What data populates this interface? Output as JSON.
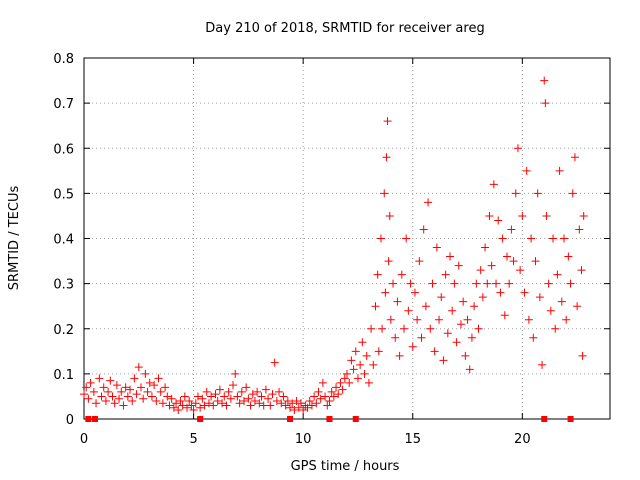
{
  "chart_data": {
    "type": "scatter",
    "title": "Day 210 of 2018, SRMTID for receiver areg",
    "xlabel": "GPS time / hours",
    "ylabel": "SRMTID / TECUs",
    "xlim": [
      0,
      24
    ],
    "ylim": [
      0,
      0.8
    ],
    "xticks": [
      0,
      5,
      10,
      15,
      20
    ],
    "xtick_labels": [
      "0",
      "5",
      "10",
      "15",
      "20"
    ],
    "yticks": [
      0,
      0.1,
      0.2,
      0.3,
      0.4,
      0.5,
      0.6,
      0.7,
      0.8
    ],
    "ytick_labels": [
      "0",
      "0.1",
      "0.2",
      "0.3",
      "0.4",
      "0.5",
      "0.6",
      "0.7",
      "0.8"
    ],
    "grid": true,
    "marker": "plus",
    "color": "#ff0000",
    "series": [
      {
        "name": "SRMTID",
        "points": [
          [
            0.0,
            0.055
          ],
          [
            0.1,
            0.07
          ],
          [
            0.2,
            0.045
          ],
          [
            0.3,
            0.08
          ],
          [
            0.45,
            0.06
          ],
          [
            0.55,
            0.035
          ],
          [
            0.7,
            0.09
          ],
          [
            0.8,
            0.05
          ],
          [
            0.9,
            0.07
          ],
          [
            1.0,
            0.04
          ],
          [
            1.1,
            0.06
          ],
          [
            1.2,
            0.085
          ],
          [
            1.3,
            0.05
          ],
          [
            1.4,
            0.035
          ],
          [
            1.5,
            0.075
          ],
          [
            1.6,
            0.045
          ],
          [
            1.7,
            0.06
          ],
          [
            1.8,
            0.03
          ],
          [
            1.9,
            0.07
          ],
          [
            2.0,
            0.05
          ],
          [
            2.1,
            0.065
          ],
          [
            2.2,
            0.04
          ],
          [
            2.3,
            0.09
          ],
          [
            2.4,
            0.055
          ],
          [
            2.5,
            0.115
          ],
          [
            2.6,
            0.07
          ],
          [
            2.7,
            0.045
          ],
          [
            2.8,
            0.1
          ],
          [
            2.9,
            0.06
          ],
          [
            3.0,
            0.08
          ],
          [
            3.1,
            0.05
          ],
          [
            3.2,
            0.075
          ],
          [
            3.3,
            0.04
          ],
          [
            3.4,
            0.09
          ],
          [
            3.5,
            0.06
          ],
          [
            3.6,
            0.035
          ],
          [
            3.7,
            0.07
          ],
          [
            3.8,
            0.05
          ],
          [
            3.9,
            0.03
          ],
          [
            4.0,
            0.045
          ],
          [
            4.1,
            0.025
          ],
          [
            4.2,
            0.035
          ],
          [
            4.3,
            0.02
          ],
          [
            4.4,
            0.04
          ],
          [
            4.5,
            0.03
          ],
          [
            4.6,
            0.05
          ],
          [
            4.7,
            0.025
          ],
          [
            4.8,
            0.04
          ],
          [
            4.9,
            0.03
          ],
          [
            5.0,
            0.02
          ],
          [
            5.1,
            0.035
          ],
          [
            5.2,
            0.05
          ],
          [
            5.3,
            0.025
          ],
          [
            5.4,
            0.045
          ],
          [
            5.5,
            0.03
          ],
          [
            5.6,
            0.06
          ],
          [
            5.7,
            0.035
          ],
          [
            5.8,
            0.05
          ],
          [
            5.9,
            0.03
          ],
          [
            6.0,
            0.055
          ],
          [
            6.1,
            0.04
          ],
          [
            6.2,
            0.065
          ],
          [
            6.3,
            0.035
          ],
          [
            6.4,
            0.05
          ],
          [
            6.5,
            0.03
          ],
          [
            6.6,
            0.06
          ],
          [
            6.7,
            0.045
          ],
          [
            6.8,
            0.075
          ],
          [
            6.9,
            0.1
          ],
          [
            7.0,
            0.05
          ],
          [
            7.1,
            0.035
          ],
          [
            7.2,
            0.06
          ],
          [
            7.3,
            0.04
          ],
          [
            7.4,
            0.07
          ],
          [
            7.5,
            0.045
          ],
          [
            7.6,
            0.03
          ],
          [
            7.7,
            0.055
          ],
          [
            7.8,
            0.04
          ],
          [
            7.9,
            0.06
          ],
          [
            8.0,
            0.035
          ],
          [
            8.1,
            0.05
          ],
          [
            8.2,
            0.03
          ],
          [
            8.3,
            0.065
          ],
          [
            8.4,
            0.045
          ],
          [
            8.5,
            0.03
          ],
          [
            8.6,
            0.055
          ],
          [
            8.7,
            0.125
          ],
          [
            8.8,
            0.04
          ],
          [
            8.9,
            0.06
          ],
          [
            9.0,
            0.035
          ],
          [
            9.1,
            0.05
          ],
          [
            9.2,
            0.03
          ],
          [
            9.3,
            0.04
          ],
          [
            9.4,
            0.025
          ],
          [
            9.5,
            0.035
          ],
          [
            9.6,
            0.02
          ],
          [
            9.7,
            0.04
          ],
          [
            9.8,
            0.025
          ],
          [
            9.9,
            0.035
          ],
          [
            10.0,
            0.02
          ],
          [
            10.1,
            0.03
          ],
          [
            10.2,
            0.025
          ],
          [
            10.3,
            0.04
          ],
          [
            10.4,
            0.03
          ],
          [
            10.5,
            0.05
          ],
          [
            10.6,
            0.035
          ],
          [
            10.7,
            0.06
          ],
          [
            10.8,
            0.045
          ],
          [
            10.9,
            0.08
          ],
          [
            11.0,
            0.05
          ],
          [
            11.1,
            0.03
          ],
          [
            11.2,
            0.04
          ],
          [
            11.3,
            0.06
          ],
          [
            11.4,
            0.05
          ],
          [
            11.5,
            0.07
          ],
          [
            11.6,
            0.055
          ],
          [
            11.7,
            0.08
          ],
          [
            11.8,
            0.065
          ],
          [
            11.9,
            0.09
          ],
          [
            12.0,
            0.1
          ],
          [
            12.1,
            0.08
          ],
          [
            12.2,
            0.13
          ],
          [
            12.3,
            0.11
          ],
          [
            12.4,
            0.15
          ],
          [
            12.5,
            0.09
          ],
          [
            12.6,
            0.12
          ],
          [
            12.7,
            0.17
          ],
          [
            12.8,
            0.1
          ],
          [
            12.9,
            0.14
          ],
          [
            13.0,
            0.08
          ],
          [
            13.1,
            0.2
          ],
          [
            13.2,
            0.12
          ],
          [
            13.3,
            0.25
          ],
          [
            13.4,
            0.32
          ],
          [
            13.45,
            0.15
          ],
          [
            13.55,
            0.4
          ],
          [
            13.6,
            0.2
          ],
          [
            13.7,
            0.5
          ],
          [
            13.75,
            0.28
          ],
          [
            13.8,
            0.58
          ],
          [
            13.85,
            0.66
          ],
          [
            13.9,
            0.35
          ],
          [
            13.95,
            0.45
          ],
          [
            14.0,
            0.22
          ],
          [
            14.1,
            0.3
          ],
          [
            14.2,
            0.18
          ],
          [
            14.3,
            0.26
          ],
          [
            14.4,
            0.14
          ],
          [
            14.5,
            0.32
          ],
          [
            14.6,
            0.2
          ],
          [
            14.7,
            0.4
          ],
          [
            14.8,
            0.24
          ],
          [
            14.9,
            0.3
          ],
          [
            15.0,
            0.16
          ],
          [
            15.1,
            0.28
          ],
          [
            15.2,
            0.22
          ],
          [
            15.3,
            0.35
          ],
          [
            15.4,
            0.18
          ],
          [
            15.5,
            0.42
          ],
          [
            15.6,
            0.25
          ],
          [
            15.7,
            0.48
          ],
          [
            15.8,
            0.2
          ],
          [
            15.9,
            0.3
          ],
          [
            16.0,
            0.15
          ],
          [
            16.1,
            0.38
          ],
          [
            16.2,
            0.22
          ],
          [
            16.3,
            0.27
          ],
          [
            16.4,
            0.13
          ],
          [
            16.5,
            0.32
          ],
          [
            16.6,
            0.19
          ],
          [
            16.7,
            0.36
          ],
          [
            16.8,
            0.24
          ],
          [
            16.9,
            0.3
          ],
          [
            17.0,
            0.17
          ],
          [
            17.1,
            0.34
          ],
          [
            17.2,
            0.21
          ],
          [
            17.3,
            0.26
          ],
          [
            17.4,
            0.14
          ],
          [
            17.5,
            0.22
          ],
          [
            17.6,
            0.11
          ],
          [
            17.7,
            0.18
          ],
          [
            17.8,
            0.25
          ],
          [
            17.9,
            0.3
          ],
          [
            18.0,
            0.2
          ],
          [
            18.1,
            0.33
          ],
          [
            18.2,
            0.27
          ],
          [
            18.3,
            0.38
          ],
          [
            18.4,
            0.3
          ],
          [
            18.5,
            0.45
          ],
          [
            18.6,
            0.34
          ],
          [
            18.7,
            0.52
          ],
          [
            18.8,
            0.3
          ],
          [
            18.9,
            0.44
          ],
          [
            19.0,
            0.28
          ],
          [
            19.1,
            0.4
          ],
          [
            19.2,
            0.23
          ],
          [
            19.3,
            0.36
          ],
          [
            19.4,
            0.3
          ],
          [
            19.5,
            0.42
          ],
          [
            19.6,
            0.35
          ],
          [
            19.7,
            0.5
          ],
          [
            19.8,
            0.6
          ],
          [
            19.9,
            0.33
          ],
          [
            20.0,
            0.45
          ],
          [
            20.1,
            0.28
          ],
          [
            20.2,
            0.55
          ],
          [
            20.3,
            0.22
          ],
          [
            20.4,
            0.4
          ],
          [
            20.5,
            0.18
          ],
          [
            20.6,
            0.35
          ],
          [
            20.7,
            0.5
          ],
          [
            20.8,
            0.27
          ],
          [
            20.9,
            0.12
          ],
          [
            21.0,
            0.75
          ],
          [
            21.05,
            0.7
          ],
          [
            21.1,
            0.45
          ],
          [
            21.2,
            0.3
          ],
          [
            21.3,
            0.24
          ],
          [
            21.4,
            0.4
          ],
          [
            21.5,
            0.2
          ],
          [
            21.6,
            0.32
          ],
          [
            21.7,
            0.55
          ],
          [
            21.8,
            0.26
          ],
          [
            21.9,
            0.4
          ],
          [
            22.0,
            0.22
          ],
          [
            22.1,
            0.36
          ],
          [
            22.2,
            0.3
          ],
          [
            22.3,
            0.5
          ],
          [
            22.4,
            0.58
          ],
          [
            22.5,
            0.25
          ],
          [
            22.6,
            0.42
          ],
          [
            22.7,
            0.33
          ],
          [
            22.75,
            0.14
          ],
          [
            22.8,
            0.45
          ]
        ]
      }
    ],
    "gaps_marked_at_zero": [
      0.2,
      0.5,
      5.3,
      9.4,
      11.2,
      12.4,
      21.0,
      22.2
    ]
  }
}
